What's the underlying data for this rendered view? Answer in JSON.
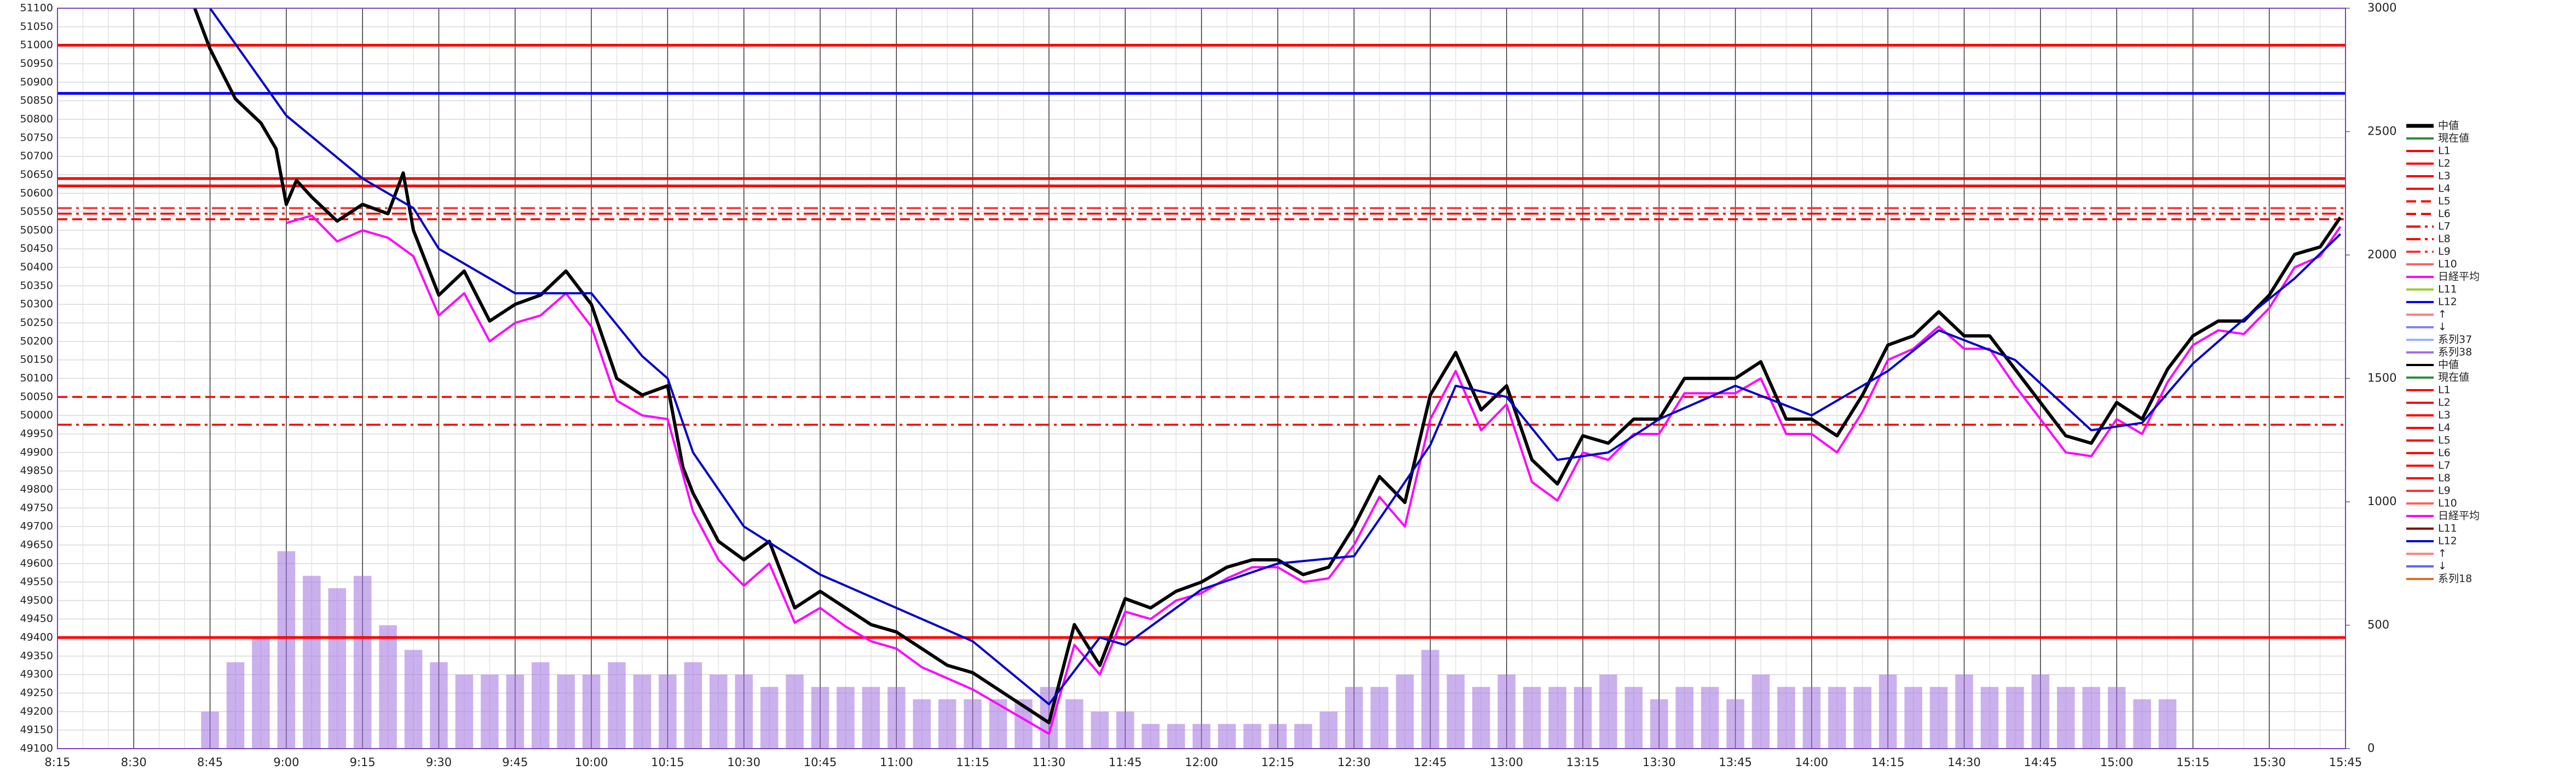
{
  "chart_data": {
    "type": "line",
    "categories": [
      "8:15",
      "8:30",
      "8:45",
      "9:00",
      "9:15",
      "9:30",
      "9:45",
      "10:00",
      "10:15",
      "10:30",
      "10:45",
      "11:00",
      "11:15",
      "11:30",
      "11:45",
      "12:00",
      "12:15",
      "12:30",
      "12:45",
      "13:00",
      "13:15",
      "13:30",
      "13:45",
      "14:00",
      "14:15",
      "14:30",
      "14:45",
      "15:00",
      "15:15",
      "15:30",
      "15:45"
    ],
    "ylim": [
      49100,
      51100
    ],
    "yticks": [
      49100,
      49150,
      49200,
      49250,
      49300,
      49350,
      49400,
      49450,
      49500,
      49550,
      49600,
      49650,
      49700,
      49750,
      49800,
      49850,
      49900,
      49950,
      50000,
      50050,
      50100,
      50150,
      50200,
      50250,
      50300,
      50350,
      50400,
      50450,
      50500,
      50550,
      50600,
      50650,
      50700,
      50750,
      50800,
      50850,
      50900,
      50950,
      51000,
      51050,
      51100
    ],
    "y2lim": [
      0,
      3000
    ],
    "y2ticks": [
      0,
      500,
      1000,
      1500,
      2000,
      2500,
      3000
    ],
    "grid": true,
    "legend": "right",
    "series": [
      {
        "name": "中値",
        "color": "#000000",
        "kind": "line",
        "dash": "solid",
        "x": [
          "8:42",
          "8:45",
          "8:50",
          "8:55",
          "8:58",
          "9:00",
          "9:02",
          "9:05",
          "9:10",
          "9:15",
          "9:20",
          "9:23",
          "9:25",
          "9:30",
          "9:35",
          "9:40",
          "9:45",
          "9:50",
          "9:55",
          "10:00",
          "10:05",
          "10:10",
          "10:15",
          "10:18",
          "10:20",
          "10:25",
          "10:30",
          "10:35",
          "10:40",
          "10:45",
          "10:50",
          "10:55",
          "11:00",
          "11:05",
          "11:10",
          "11:15",
          "11:20",
          "11:25",
          "11:30",
          "11:35",
          "11:40",
          "11:45",
          "11:50",
          "11:55",
          "12:00",
          "12:05",
          "12:10",
          "12:15",
          "12:20",
          "12:25",
          "12:30",
          "12:35",
          "12:40",
          "12:45",
          "12:50",
          "12:55",
          "13:00",
          "13:05",
          "13:10",
          "13:15",
          "13:20",
          "13:25",
          "13:30",
          "13:35",
          "13:40",
          "13:45",
          "13:50",
          "13:55",
          "14:00",
          "14:05",
          "14:10",
          "14:15",
          "14:20",
          "14:25",
          "14:30",
          "14:35",
          "14:40",
          "14:45",
          "14:50",
          "14:55",
          "15:00",
          "15:05",
          "15:10",
          "15:15",
          "15:20",
          "15:25",
          "15:30",
          "15:35",
          "15:40",
          "15:44"
        ],
        "values": [
          51100,
          50990,
          50855,
          50790,
          50720,
          50570,
          50635,
          50590,
          50525,
          50570,
          50545,
          50655,
          50500,
          50325,
          50390,
          50255,
          50300,
          50325,
          50390,
          50300,
          50100,
          50055,
          50080,
          49860,
          49790,
          49660,
          49610,
          49660,
          49480,
          49525,
          49480,
          49435,
          49415,
          49370,
          49325,
          49305,
          49260,
          49215,
          49170,
          49435,
          49325,
          49505,
          49480,
          49525,
          49550,
          49590,
          49610,
          49610,
          49570,
          49590,
          49700,
          49835,
          49765,
          50055,
          50170,
          50015,
          50080,
          49880,
          49815,
          49945,
          49925,
          49990,
          49990,
          50100,
          50100,
          50100,
          50145,
          49990,
          49990,
          49945,
          50055,
          50190,
          50215,
          50280,
          50215,
          50215,
          50125,
          50035,
          49945,
          49925,
          50035,
          49990,
          50125,
          50215,
          50255,
          50255,
          50325,
          50435,
          50455,
          50535
        ]
      },
      {
        "name": "現在値",
        "color": "#2e8b3d"
      },
      {
        "name": "L1",
        "color": "#ff0000",
        "kind": "level",
        "dash": "solid",
        "value": 51000
      },
      {
        "name": "L2",
        "color": "#ff0000",
        "kind": "level",
        "dash": "solid",
        "value": 50640
      },
      {
        "name": "L3",
        "color": "#ff0000",
        "kind": "level",
        "dash": "solid",
        "value": 50620
      },
      {
        "name": "L4",
        "color": "#ff0000",
        "kind": "level",
        "dash": "solid",
        "value": 49400
      },
      {
        "name": "L5",
        "color": "#ff0000",
        "kind": "level",
        "dash": "dashed",
        "value": 50050
      },
      {
        "name": "L6",
        "color": "#ff0000",
        "kind": "level",
        "dash": "dashed",
        "value": 50530
      },
      {
        "name": "L7",
        "color": "#ff0000",
        "kind": "level",
        "dash": "dashdot",
        "value": 49975
      },
      {
        "name": "L8",
        "color": "#ff0000",
        "kind": "level",
        "dash": "dashdot",
        "value": 50545
      },
      {
        "name": "L9",
        "color": "#ff3030",
        "kind": "level",
        "dash": "dashdot",
        "value": 50560
      },
      {
        "name": "L10",
        "color": "#ff6060"
      },
      {
        "name": "日経平均",
        "color": "#ff00ff",
        "kind": "line",
        "dash": "solid",
        "x": [
          "9:00",
          "9:05",
          "9:10",
          "9:15",
          "9:20",
          "9:25",
          "9:30",
          "9:35",
          "9:40",
          "9:45",
          "9:50",
          "9:55",
          "10:00",
          "10:05",
          "10:10",
          "10:15",
          "10:20",
          "10:25",
          "10:30",
          "10:35",
          "10:40",
          "10:45",
          "10:50",
          "10:55",
          "11:00",
          "11:05",
          "11:10",
          "11:15",
          "11:20",
          "11:25",
          "11:30",
          "11:35",
          "11:40",
          "11:45",
          "11:50",
          "11:55",
          "12:00",
          "12:05",
          "12:10",
          "12:15",
          "12:20",
          "12:25",
          "12:30",
          "12:35",
          "12:40",
          "12:45",
          "12:50",
          "12:55",
          "13:00",
          "13:05",
          "13:10",
          "13:15",
          "13:20",
          "13:25",
          "13:30",
          "13:35",
          "13:40",
          "13:45",
          "13:50",
          "13:55",
          "14:00",
          "14:05",
          "14:10",
          "14:15",
          "14:20",
          "14:25",
          "14:30",
          "14:35",
          "14:40",
          "14:45",
          "14:50",
          "14:55",
          "15:00",
          "15:05",
          "15:10",
          "15:15",
          "15:20",
          "15:25",
          "15:30",
          "15:35",
          "15:40",
          "15:44"
        ],
        "values": [
          50520,
          50540,
          50470,
          50500,
          50480,
          50430,
          50270,
          50330,
          50200,
          50250,
          50270,
          50330,
          50240,
          50040,
          50000,
          49990,
          49740,
          49610,
          49540,
          49600,
          49440,
          49480,
          49430,
          49390,
          49370,
          49320,
          49290,
          49260,
          49220,
          49180,
          49140,
          49380,
          49300,
          49470,
          49450,
          49500,
          49520,
          49560,
          49590,
          49590,
          49550,
          49560,
          49650,
          49780,
          49700,
          49990,
          50120,
          49960,
          50030,
          49820,
          49770,
          49900,
          49880,
          49950,
          49950,
          50060,
          50060,
          50060,
          50100,
          49950,
          49950,
          49900,
          50010,
          50150,
          50180,
          50240,
          50180,
          50180,
          50080,
          49990,
          49900,
          49890,
          49990,
          49950,
          50090,
          50190,
          50230,
          50220,
          50290,
          50400,
          50430,
          50510
        ]
      },
      {
        "name": "L11",
        "color": "#9acd32"
      },
      {
        "name": "L12",
        "color": "#0000ff",
        "kind": "level",
        "dash": "solid",
        "value": 50870
      },
      {
        "name": "↑",
        "color": "#ff8080"
      },
      {
        "name": "↓",
        "color": "#8080ff"
      },
      {
        "name": "系列37",
        "color": "#99b3ff"
      },
      {
        "name": "系列38",
        "color": "#a070e0",
        "kind": "bar",
        "axis": "y2",
        "x": [
          "8:45",
          "8:50",
          "8:55",
          "9:00",
          "9:05",
          "9:10",
          "9:15",
          "9:20",
          "9:25",
          "9:30",
          "9:35",
          "9:40",
          "9:45",
          "9:50",
          "9:55",
          "10:00",
          "10:05",
          "10:10",
          "10:15",
          "10:20",
          "10:25",
          "10:30",
          "10:35",
          "10:40",
          "10:45",
          "10:50",
          "10:55",
          "11:00",
          "11:05",
          "11:10",
          "11:15",
          "11:20",
          "11:25",
          "11:30",
          "11:35",
          "11:40",
          "11:45",
          "11:50",
          "11:55",
          "12:00",
          "12:05",
          "12:10",
          "12:15",
          "12:20",
          "12:25",
          "12:30",
          "12:35",
          "12:40",
          "12:45",
          "12:50",
          "12:55",
          "13:00",
          "13:05",
          "13:10",
          "13:15",
          "13:20",
          "13:25",
          "13:30",
          "13:35",
          "13:40",
          "13:45",
          "13:50",
          "13:55",
          "14:00",
          "14:05",
          "14:10",
          "14:15",
          "14:20",
          "14:25",
          "14:30",
          "14:35",
          "14:40",
          "14:45",
          "14:50",
          "14:55",
          "15:00",
          "15:05",
          "15:10"
        ],
        "values": [
          150,
          350,
          450,
          800,
          700,
          650,
          700,
          500,
          400,
          350,
          300,
          300,
          300,
          350,
          300,
          300,
          350,
          300,
          300,
          350,
          300,
          300,
          250,
          300,
          250,
          250,
          250,
          250,
          200,
          200,
          200,
          200,
          200,
          250,
          200,
          150,
          150,
          100,
          100,
          100,
          100,
          100,
          100,
          100,
          150,
          250,
          250,
          300,
          400,
          300,
          250,
          300,
          250,
          250,
          250,
          300,
          250,
          200,
          250,
          250,
          200,
          300,
          250,
          250,
          250,
          250,
          300,
          250,
          250,
          300,
          250,
          250,
          300,
          250,
          250,
          250,
          200,
          200
        ]
      },
      {
        "name": "中値",
        "color": "#000000"
      },
      {
        "name": "現在値",
        "color": "#2e8b3d"
      },
      {
        "name": "L1",
        "color": "#ff0000"
      },
      {
        "name": "L2",
        "color": "#ff0000"
      },
      {
        "name": "L3",
        "color": "#ff0000"
      },
      {
        "name": "L4",
        "color": "#ff0000"
      },
      {
        "name": "L5",
        "color": "#ff0000"
      },
      {
        "name": "L6",
        "color": "#ff0000"
      },
      {
        "name": "L7",
        "color": "#ff0000"
      },
      {
        "name": "L8",
        "color": "#ff0000"
      },
      {
        "name": "L9",
        "color": "#ff3030"
      },
      {
        "name": "L10",
        "color": "#ff6060"
      },
      {
        "name": "日経平均",
        "color": "#ff00ff"
      },
      {
        "name": "L11",
        "color": "#8b0000"
      },
      {
        "name": "L12",
        "color": "#0000cc",
        "kind": "line",
        "dash": "solid",
        "x": [
          "8:45",
          "9:00",
          "9:15",
          "9:25",
          "9:30",
          "9:45",
          "10:00",
          "10:10",
          "10:15",
          "10:20",
          "10:30",
          "10:45",
          "11:00",
          "11:15",
          "11:30",
          "11:40",
          "11:45",
          "12:00",
          "12:15",
          "12:30",
          "12:45",
          "12:50",
          "13:00",
          "13:10",
          "13:20",
          "13:30",
          "13:45",
          "14:00",
          "14:15",
          "14:25",
          "14:40",
          "14:55",
          "15:05",
          "15:15",
          "15:25",
          "15:35",
          "15:44"
        ],
        "values": [
          51100,
          50810,
          50640,
          50560,
          50450,
          50330,
          50330,
          50160,
          50100,
          49900,
          49700,
          49570,
          49480,
          49390,
          49220,
          49400,
          49380,
          49530,
          49600,
          49620,
          49920,
          50080,
          50050,
          49880,
          49900,
          49990,
          50080,
          50000,
          50120,
          50230,
          50150,
          49960,
          49980,
          50140,
          50260,
          50370,
          50490
        ]
      },
      {
        "name": "↑",
        "color": "#ff8080"
      },
      {
        "name": "↓",
        "color": "#6060ff"
      },
      {
        "name": "系列18",
        "color": "#e07020"
      }
    ]
  }
}
